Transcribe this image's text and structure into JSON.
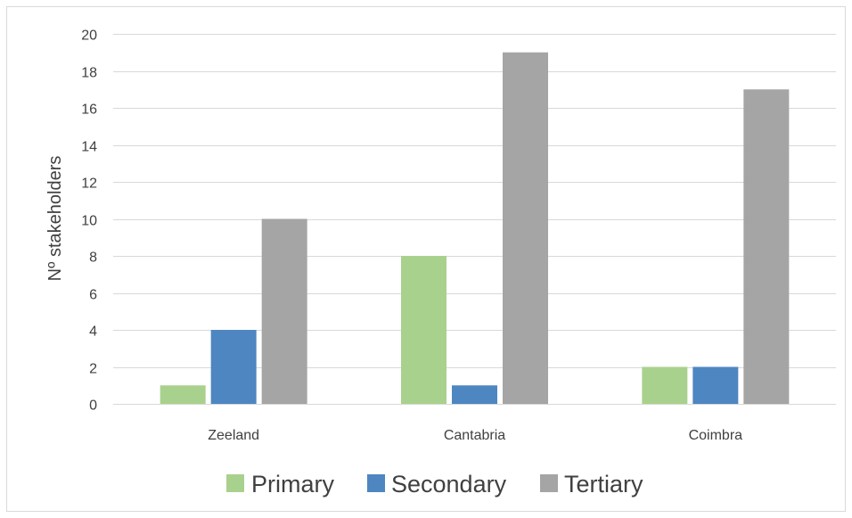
{
  "chart_data": {
    "type": "bar",
    "title": "",
    "xlabel": "",
    "ylabel": "Nº stakeholders",
    "categories": [
      "Zeeland",
      "Cantabria",
      "Coimbra"
    ],
    "series": [
      {
        "name": "Primary",
        "values": [
          1,
          8,
          2
        ],
        "color": "#a9d18e"
      },
      {
        "name": "Secondary",
        "values": [
          4,
          1,
          2
        ],
        "color": "#4e86c1"
      },
      {
        "name": "Tertiary",
        "values": [
          10,
          19,
          17
        ],
        "color": "#a5a5a5"
      }
    ],
    "ylim": [
      0,
      20
    ],
    "yticks": [
      "0",
      "2",
      "4",
      "6",
      "8",
      "10",
      "12",
      "14",
      "16",
      "18",
      "20"
    ],
    "grid": true,
    "legend_position": "bottom",
    "colors": {
      "gridline": "#d9d9d9",
      "border": "#d9d9d9",
      "text": "#404040"
    }
  }
}
